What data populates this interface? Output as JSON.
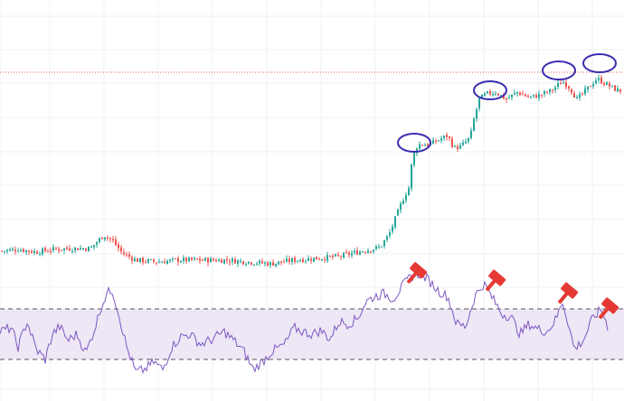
{
  "colors": {
    "background": "#ffffff",
    "grid": "#eef0f3",
    "candle_up": "#26a69a",
    "candle_down": "#ef5350",
    "price_line": "#e0533d",
    "rsi_line": "#7e57c2",
    "rsi_band_fill": "#ede7f6",
    "rsi_band_border": "#555555",
    "annotation_circle": "#3a2db0",
    "annotation_hammer": "#e53935"
  },
  "chart_data": [
    {
      "type": "candlestick",
      "panel": "price",
      "title": "",
      "xlabel": "",
      "ylabel": "",
      "grid": true,
      "ylim": [
        0,
        300
      ],
      "horizontal_line": {
        "y": 220,
        "style": "dotted",
        "color": "#e0533d"
      },
      "anchors": [
        [
          0,
          22
        ],
        [
          20,
          24
        ],
        [
          40,
          21
        ],
        [
          60,
          24
        ],
        [
          80,
          25
        ],
        [
          100,
          25
        ],
        [
          115,
          40
        ],
        [
          125,
          33
        ],
        [
          135,
          20
        ],
        [
          150,
          12
        ],
        [
          175,
          10
        ],
        [
          195,
          12
        ],
        [
          220,
          12
        ],
        [
          250,
          12
        ],
        [
          275,
          10
        ],
        [
          300,
          8
        ],
        [
          325,
          12
        ],
        [
          350,
          14
        ],
        [
          375,
          16
        ],
        [
          400,
          22
        ],
        [
          420,
          26
        ],
        [
          430,
          40
        ],
        [
          438,
          60
        ],
        [
          445,
          78
        ],
        [
          452,
          92
        ],
        [
          456,
          125
        ],
        [
          462,
          140
        ],
        [
          475,
          140
        ],
        [
          485,
          145
        ],
        [
          495,
          150
        ],
        [
          502,
          136
        ],
        [
          510,
          138
        ],
        [
          520,
          148
        ],
        [
          524,
          168
        ],
        [
          530,
          190
        ],
        [
          538,
          196
        ],
        [
          548,
          198
        ],
        [
          560,
          190
        ],
        [
          572,
          198
        ],
        [
          585,
          192
        ],
        [
          598,
          195
        ],
        [
          610,
          200
        ],
        [
          622,
          210
        ],
        [
          630,
          203
        ],
        [
          638,
          190
        ],
        [
          648,
          200
        ],
        [
          660,
          213
        ],
        [
          670,
          207
        ],
        [
          682,
          200
        ]
      ],
      "markers": [
        {
          "shape": "circle",
          "x": 458,
          "y": 142
        },
        {
          "shape": "circle",
          "x": 542,
          "y": 200
        },
        {
          "shape": "circle",
          "x": 618,
          "y": 222
        },
        {
          "shape": "circle",
          "x": 663,
          "y": 230
        }
      ]
    },
    {
      "type": "line",
      "panel": "oscillator",
      "title": "",
      "xlabel": "",
      "ylabel": "",
      "grid": true,
      "ylim": [
        0,
        100
      ],
      "band": [
        30,
        70
      ],
      "anchors": [
        [
          0,
          52
        ],
        [
          12,
          55
        ],
        [
          20,
          40
        ],
        [
          30,
          60
        ],
        [
          40,
          38
        ],
        [
          50,
          30
        ],
        [
          58,
          50
        ],
        [
          66,
          56
        ],
        [
          75,
          45
        ],
        [
          85,
          50
        ],
        [
          95,
          35
        ],
        [
          105,
          55
        ],
        [
          112,
          72
        ],
        [
          118,
          82
        ],
        [
          124,
          85
        ],
        [
          130,
          70
        ],
        [
          140,
          40
        ],
        [
          150,
          20
        ],
        [
          160,
          22
        ],
        [
          170,
          28
        ],
        [
          180,
          22
        ],
        [
          190,
          40
        ],
        [
          200,
          48
        ],
        [
          210,
          50
        ],
        [
          222,
          42
        ],
        [
          235,
          46
        ],
        [
          248,
          52
        ],
        [
          260,
          44
        ],
        [
          270,
          36
        ],
        [
          280,
          22
        ],
        [
          290,
          28
        ],
        [
          300,
          36
        ],
        [
          315,
          42
        ],
        [
          325,
          55
        ],
        [
          335,
          52
        ],
        [
          345,
          50
        ],
        [
          355,
          53
        ],
        [
          365,
          46
        ],
        [
          375,
          60
        ],
        [
          385,
          58
        ],
        [
          395,
          62
        ],
        [
          405,
          76
        ],
        [
          415,
          80
        ],
        [
          425,
          82
        ],
        [
          435,
          78
        ],
        [
          445,
          88
        ],
        [
          455,
          96
        ],
        [
          465,
          98
        ],
        [
          475,
          92
        ],
        [
          485,
          84
        ],
        [
          495,
          80
        ],
        [
          505,
          58
        ],
        [
          515,
          56
        ],
        [
          525,
          80
        ],
        [
          535,
          90
        ],
        [
          545,
          78
        ],
        [
          555,
          66
        ],
        [
          565,
          64
        ],
        [
          575,
          50
        ],
        [
          585,
          58
        ],
        [
          595,
          54
        ],
        [
          605,
          52
        ],
        [
          615,
          62
        ],
        [
          622,
          76
        ],
        [
          628,
          60
        ],
        [
          635,
          38
        ],
        [
          645,
          45
        ],
        [
          655,
          62
        ],
        [
          665,
          70
        ],
        [
          672,
          56
        ]
      ],
      "markers": [
        {
          "shape": "hammer",
          "x": 462,
          "y": 100
        },
        {
          "shape": "hammer",
          "x": 549,
          "y": 94
        },
        {
          "shape": "hammer",
          "x": 629,
          "y": 84
        },
        {
          "shape": "hammer",
          "x": 674,
          "y": 72
        }
      ]
    }
  ]
}
